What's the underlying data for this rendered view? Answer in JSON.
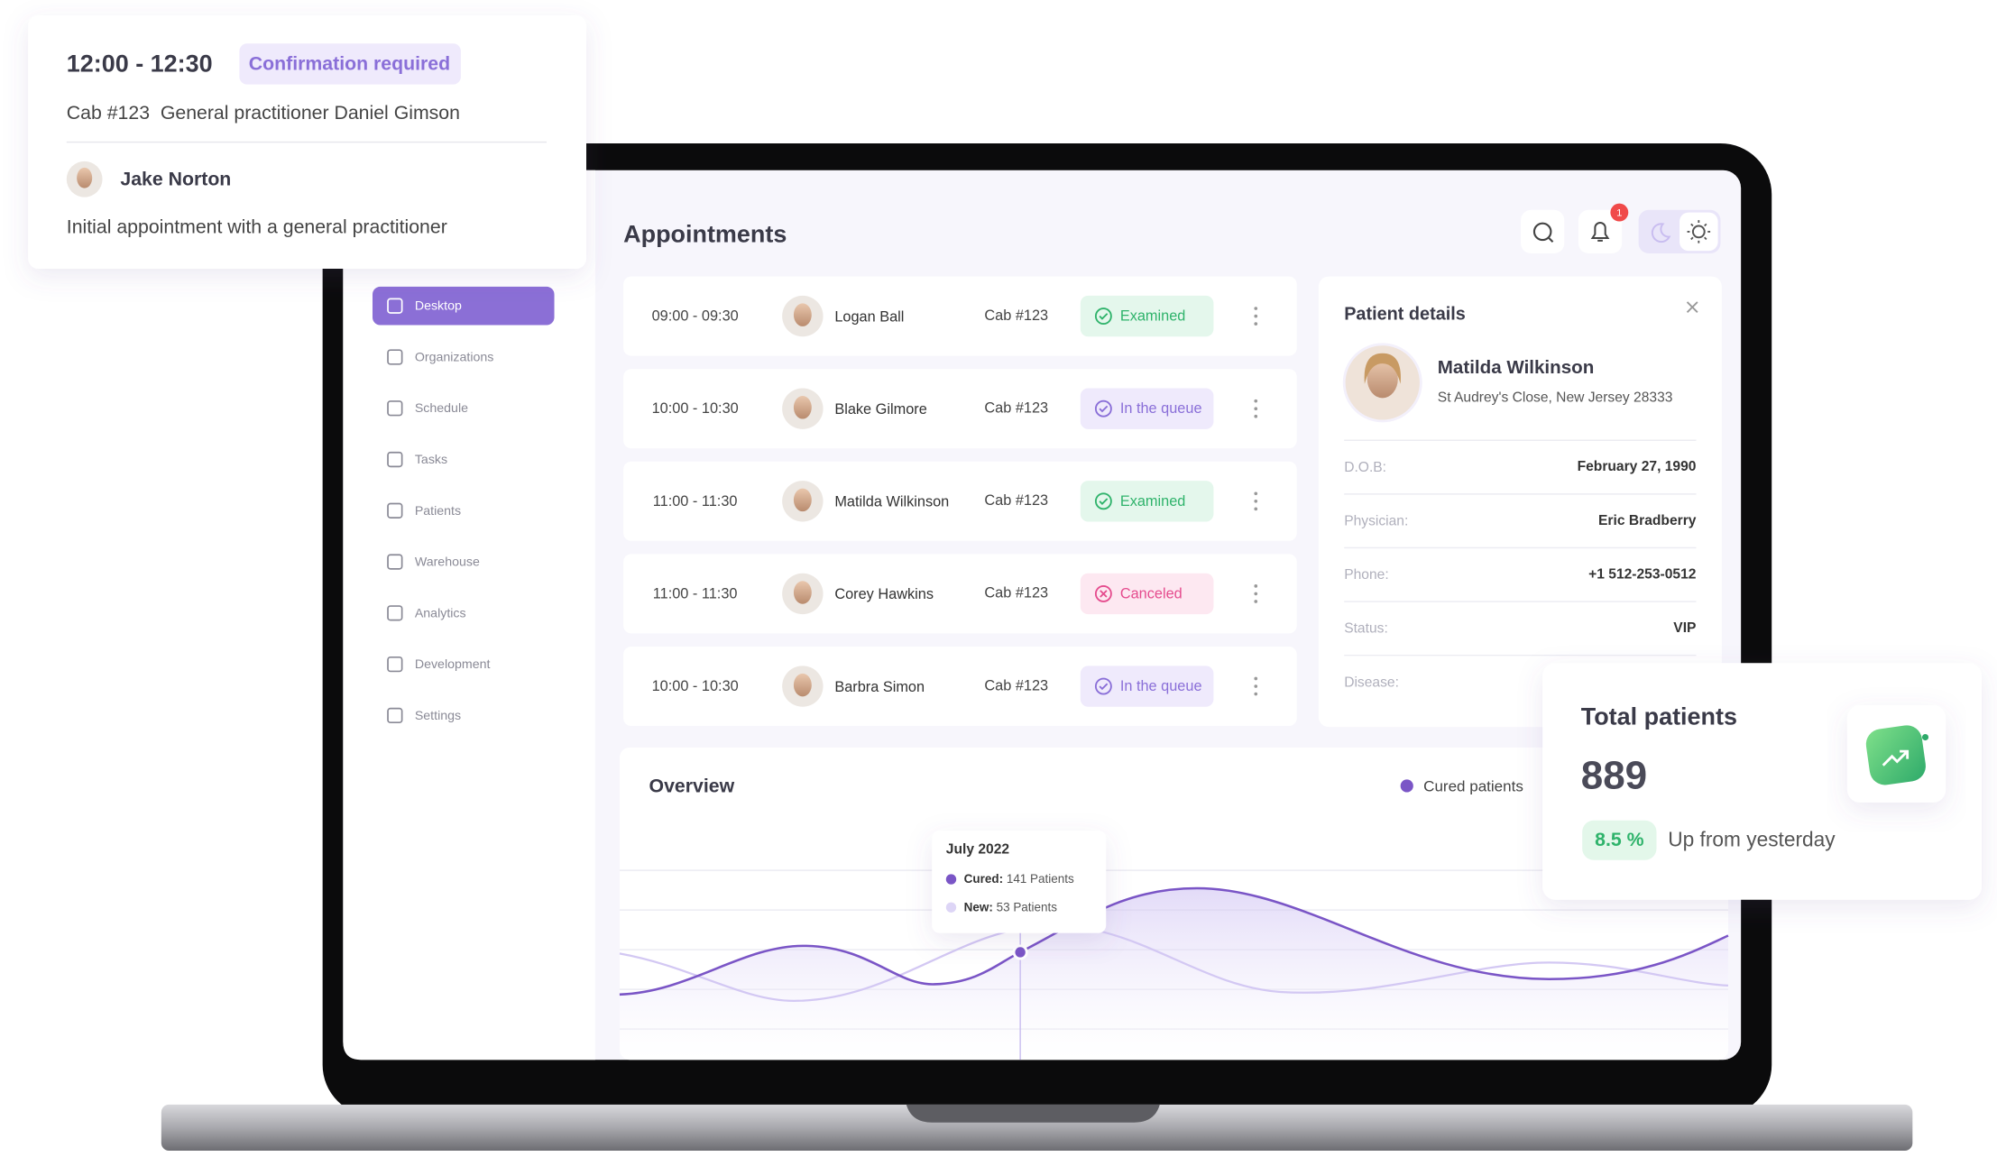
{
  "popup": {
    "time": "12:00 - 12:30",
    "badge": "Confirmation required",
    "detail": "Cab #123  General practitioner Daniel Gimson",
    "patient": "Jake Norton",
    "note": "Initial appointment with a general practitioner"
  },
  "sidebar": [
    {
      "label": "Desktop",
      "active": true
    },
    {
      "label": "Organizations"
    },
    {
      "label": "Schedule"
    },
    {
      "label": "Tasks"
    },
    {
      "label": "Patients"
    },
    {
      "label": "Warehouse"
    },
    {
      "label": "Analytics"
    },
    {
      "label": "Development"
    },
    {
      "label": "Settings"
    }
  ],
  "header": {
    "title": "Appointments",
    "notifications": "1"
  },
  "appointments": [
    {
      "time": "09:00 - 09:30",
      "name": "Logan Ball",
      "cab": "Cab #123",
      "status": "Examined",
      "color": "#2fb36b",
      "bg": "#e4f7ec"
    },
    {
      "time": "10:00 - 10:30",
      "name": "Blake Gilmore",
      "cab": "Cab #123",
      "status": "In the queue",
      "color": "#8a6fd8",
      "bg": "#efeafc"
    },
    {
      "time": "11:00 - 11:30",
      "name": "Matilda Wilkinson",
      "cab": "Cab #123",
      "status": "Examined",
      "color": "#2fb36b",
      "bg": "#e4f7ec"
    },
    {
      "time": "11:00 - 11:30",
      "name": "Corey Hawkins",
      "cab": "Cab #123",
      "status": "Canceled",
      "color": "#e54c8e",
      "bg": "#fde8f1"
    },
    {
      "time": "10:00 - 10:30",
      "name": "Barbra Simon",
      "cab": "Cab #123",
      "status": "In the queue",
      "color": "#8a6fd8",
      "bg": "#efeafc"
    }
  ],
  "patient_details": {
    "title": "Patient details",
    "name": "Matilda Wilkinson",
    "address": "St Audrey's Close, New Jersey 28333",
    "fields": [
      {
        "label": "D.O.B:",
        "value": "February 27, 1990"
      },
      {
        "label": "Physician:",
        "value": "Eric Bradberry"
      },
      {
        "label": "Phone:",
        "value": "+1 512-253-0512"
      },
      {
        "label": "Status:",
        "value": "VIP"
      },
      {
        "label": "Disease:"
      }
    ]
  },
  "overview": {
    "title": "Overview",
    "legend": "Cured patients",
    "tooltip": {
      "date": "July 2022",
      "cured_label": "Cured:",
      "cured_value": "141 Patients",
      "new_label": "New:",
      "new_value": "53 Patients"
    }
  },
  "total_patients": {
    "title": "Total patients",
    "value": "889",
    "change": "8.5 %",
    "note": "Up from yesterday"
  }
}
